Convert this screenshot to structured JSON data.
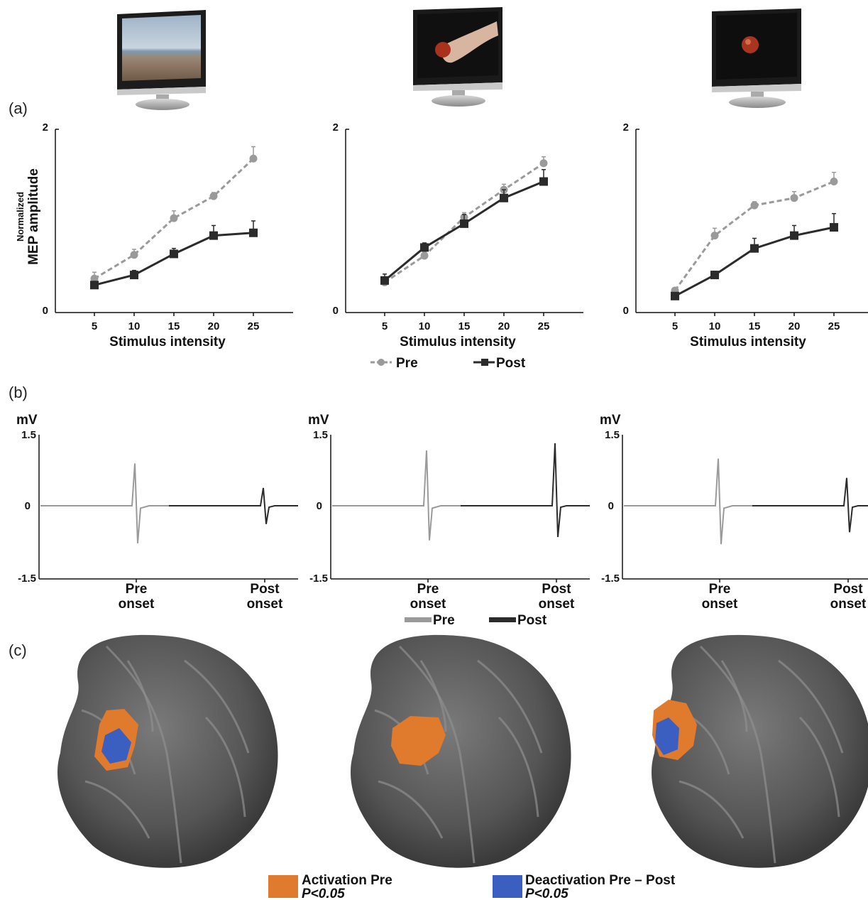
{
  "panel_labels": {
    "a": "(a)",
    "b": "(b)",
    "c": "(c)"
  },
  "colors": {
    "pre": "#9a9a9a",
    "post": "#2b2b2b",
    "activation": "#e07a2c",
    "deactivation": "#3b5fc0"
  },
  "icons": [
    "monitor-landscape-icon",
    "monitor-hand-apple-icon",
    "monitor-apple-icon"
  ],
  "chart_data": [
    {
      "type": "line",
      "xlabel": "Stimulus intensity",
      "ylabel_line1": "Normalized",
      "ylabel_line2": "MEP amplitude",
      "ylim": [
        0,
        2
      ],
      "yticks": [
        "2",
        "0"
      ],
      "x": [
        5,
        10,
        15,
        20,
        25
      ],
      "xticklabels": [
        "5",
        "10",
        "15",
        "20",
        "25"
      ],
      "series": [
        {
          "name": "Pre",
          "values": [
            0.37,
            0.63,
            1.03,
            1.27,
            1.68
          ],
          "errors": [
            0.07,
            0.06,
            0.08,
            0.04,
            0.13
          ]
        },
        {
          "name": "Post",
          "values": [
            0.3,
            0.41,
            0.64,
            0.84,
            0.87
          ],
          "errors": [
            0.04,
            0.05,
            0.06,
            0.11,
            0.13
          ]
        }
      ]
    },
    {
      "type": "line",
      "xlabel": "Stimulus intensity",
      "ylim": [
        0,
        2
      ],
      "yticks": [
        "2",
        "0"
      ],
      "x": [
        5,
        10,
        15,
        20,
        25
      ],
      "xticklabels": [
        "5",
        "10",
        "15",
        "20",
        "25"
      ],
      "series": [
        {
          "name": "Pre",
          "values": [
            0.33,
            0.62,
            1.04,
            1.34,
            1.63
          ],
          "errors": [
            0.05,
            0.04,
            0.05,
            0.06,
            0.07
          ]
        },
        {
          "name": "Post",
          "values": [
            0.35,
            0.71,
            0.97,
            1.25,
            1.43
          ],
          "errors": [
            0.07,
            0.05,
            0.1,
            0.09,
            0.13
          ]
        }
      ]
    },
    {
      "type": "line",
      "xlabel": "Stimulus intensity",
      "ylim": [
        0,
        2
      ],
      "yticks": [
        "2",
        "0"
      ],
      "x": [
        5,
        10,
        15,
        20,
        25
      ],
      "xticklabels": [
        "5",
        "10",
        "15",
        "20",
        "25"
      ],
      "series": [
        {
          "name": "Pre",
          "values": [
            0.24,
            0.84,
            1.17,
            1.25,
            1.43
          ],
          "errors": [
            0.02,
            0.08,
            0.04,
            0.07,
            0.1
          ]
        },
        {
          "name": "Post",
          "values": [
            0.18,
            0.41,
            0.7,
            0.84,
            0.93
          ],
          "errors": [
            0.03,
            0.04,
            0.11,
            0.11,
            0.15
          ]
        }
      ]
    }
  ],
  "legend_a": {
    "pre": "Pre",
    "post": "Post"
  },
  "traces": {
    "unit": "mV",
    "yticks": [
      "1.5",
      "0",
      "-1.5"
    ],
    "xticklabels": [
      [
        "Pre",
        "onset"
      ],
      [
        "Post",
        "onset"
      ]
    ],
    "panels": [
      {
        "pre": {
          "peak": 0.88,
          "trough": -0.78
        },
        "post": {
          "peak": 0.37,
          "trough": -0.38
        }
      },
      {
        "pre": {
          "peak": 1.15,
          "trough": -0.72
        },
        "post": {
          "peak": 1.3,
          "trough": -0.65
        }
      },
      {
        "pre": {
          "peak": 0.98,
          "trough": -0.8
        },
        "post": {
          "peak": 0.58,
          "trough": -0.55
        }
      }
    ]
  },
  "legend_b": {
    "pre": "Pre",
    "post": "Post"
  },
  "legend_c": {
    "activation": {
      "line1": "Activation Pre",
      "line2": "P<0.05"
    },
    "deactivation": {
      "line1": "Deactivation Pre – Post",
      "line2": "P<0.05"
    }
  }
}
